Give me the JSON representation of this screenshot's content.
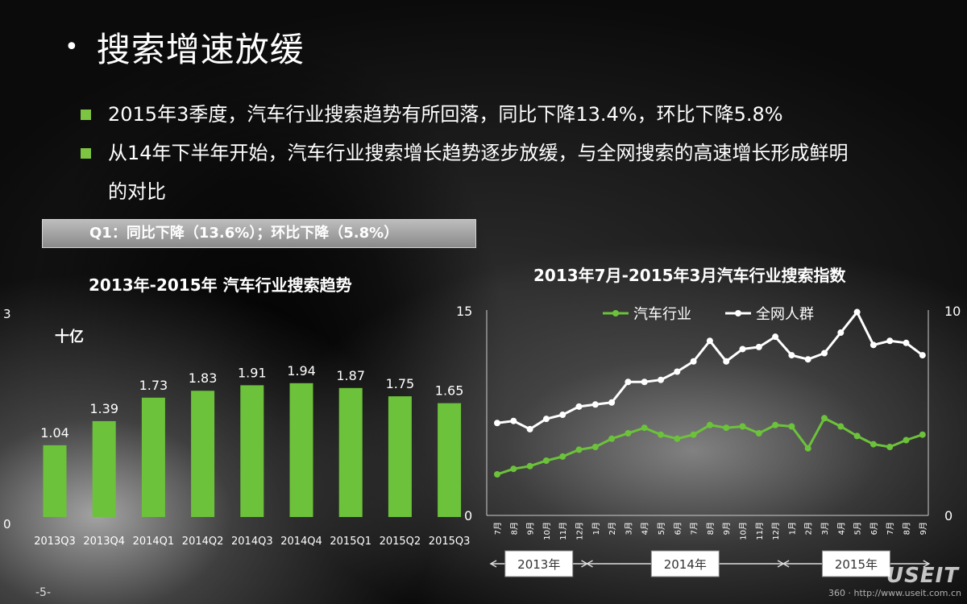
{
  "title": "搜索增速放缓",
  "bullets": [
    "2015年3季度，汽车行业搜索趋势有所回落，同比下降13.4%，环比下降5.8%",
    "从14年下半年开始，汽车行业搜索增长趋势逐步放缓，与全网搜索的高速增长形成鲜明",
    "的对比"
  ],
  "q1_box": "Q1：同比下降（13.6%）；环比下降（5.8%）",
  "page_number": "-5-",
  "brand": "USEIT",
  "watermark": "360 · http://www.useit.com.cn",
  "colors": {
    "green": "#6cc23a",
    "white": "#ffffff",
    "bullet": "#7dc443"
  },
  "chart_data": [
    {
      "type": "bar",
      "title": "2013年-2015年 汽车行业搜索趋势",
      "unit": "十亿",
      "ylim": [
        0,
        3
      ],
      "ytick_labels": [
        "0",
        "3"
      ],
      "categories": [
        "2013Q3",
        "2013Q4",
        "2014Q1",
        "2014Q2",
        "2014Q3",
        "2014Q4",
        "2015Q1",
        "2015Q2",
        "2015Q3"
      ],
      "values": [
        1.04,
        1.39,
        1.73,
        1.83,
        1.91,
        1.94,
        1.87,
        1.75,
        1.65
      ],
      "data_labels": [
        "1.04",
        "1.39",
        "1.73",
        "1.83",
        "1.91",
        "1.94",
        "1.87",
        "1.75",
        "1.65"
      ],
      "color": "#6cc23a"
    },
    {
      "type": "line",
      "title": "2013年7月-2015年3月汽车行业搜索指数",
      "x_labels": [
        "7月",
        "8月",
        "9月",
        "10月",
        "11月",
        "12月",
        "1月",
        "2月",
        "3月",
        "4月",
        "5月",
        "6月",
        "7月",
        "8月",
        "9月",
        "10月",
        "11月",
        "12月",
        "1月",
        "2月",
        "3月",
        "4月",
        "5月",
        "6月",
        "7月",
        "8月",
        "9月"
      ],
      "year_groups": [
        "2013年",
        "2014年",
        "2015年"
      ],
      "left_axis": {
        "ylim": [
          0,
          15
        ],
        "tick_labels": [
          "0",
          "15"
        ]
      },
      "right_axis": {
        "ylim": [
          0,
          10
        ],
        "tick_labels": [
          "0",
          "10"
        ]
      },
      "series": [
        {
          "name": "汽车行业",
          "axis": "left",
          "color": "#6cc23a",
          "values": [
            3.0,
            3.4,
            3.6,
            4.0,
            4.3,
            4.8,
            5.0,
            5.6,
            6.0,
            6.4,
            5.9,
            5.6,
            5.9,
            6.6,
            6.4,
            6.5,
            6.0,
            6.6,
            6.5,
            4.9,
            7.1,
            6.5,
            5.8,
            5.2,
            5.0,
            5.5,
            5.9
          ]
        },
        {
          "name": "全网人群",
          "axis": "right",
          "color": "#ffffff",
          "values": [
            4.5,
            4.6,
            4.2,
            4.7,
            4.9,
            5.3,
            5.4,
            5.5,
            6.5,
            6.5,
            6.6,
            7.0,
            7.5,
            8.5,
            7.5,
            8.1,
            8.2,
            8.7,
            7.8,
            7.6,
            7.9,
            8.9,
            9.9,
            8.3,
            8.5,
            8.4,
            7.8
          ]
        }
      ]
    }
  ]
}
